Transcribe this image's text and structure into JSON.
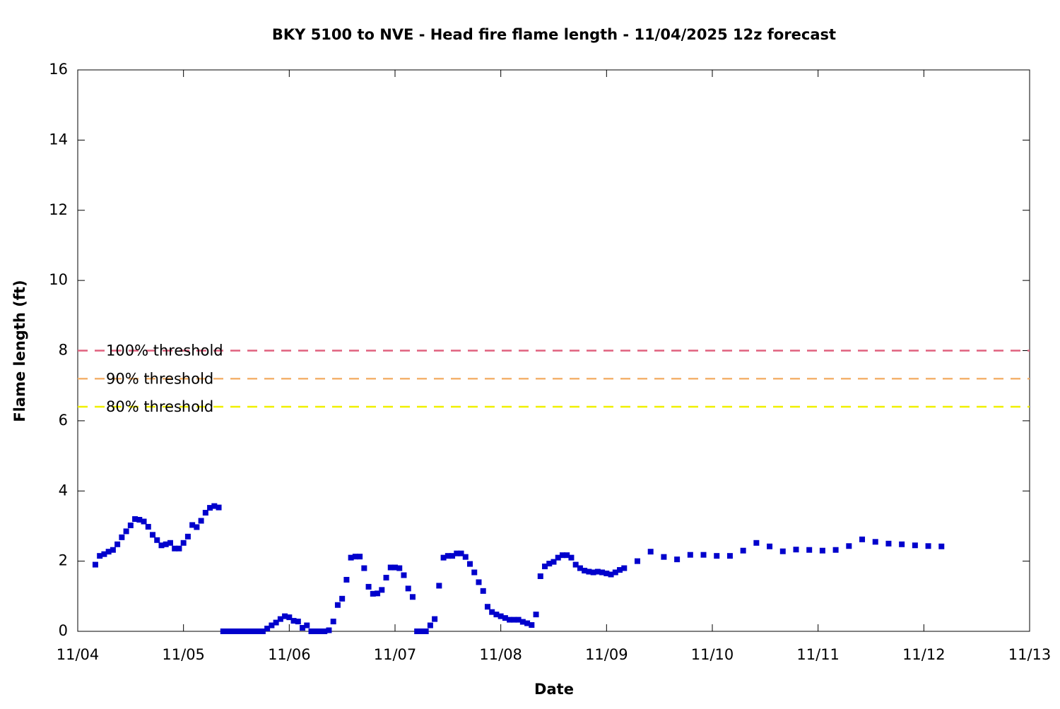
{
  "chart_data": {
    "type": "scatter",
    "title": "BKY 5100 to NVE - Head fire flame length - 11/04/2025 12z forecast",
    "x_label": "Date",
    "y_label": "Flame length (ft)",
    "xlim": [
      0,
      216
    ],
    "ylim": [
      0,
      16
    ],
    "xticks": [
      {
        "value": 0,
        "label": "11/04"
      },
      {
        "value": 24,
        "label": "11/05"
      },
      {
        "value": 48,
        "label": "11/06"
      },
      {
        "value": 72,
        "label": "11/07"
      },
      {
        "value": 96,
        "label": "11/08"
      },
      {
        "value": 120,
        "label": "11/09"
      },
      {
        "value": 144,
        "label": "11/10"
      },
      {
        "value": 168,
        "label": "11/11"
      },
      {
        "value": 192,
        "label": "11/12"
      },
      {
        "value": 216,
        "label": "11/13"
      }
    ],
    "yticks": [
      0,
      2,
      4,
      6,
      8,
      10,
      12,
      14,
      16
    ],
    "thresholds": [
      {
        "name": "100% threshold",
        "color": "#e0607e",
        "value": 8
      },
      {
        "name": "90% threshold",
        "color": "#f4b26e",
        "value": 7.2
      },
      {
        "name": "80% threshold",
        "color": "#f0f000",
        "value": 6.4
      }
    ],
    "series": [
      {
        "color": "#0000cc",
        "x": [
          4,
          5,
          6,
          7,
          8,
          9,
          10,
          11,
          12,
          13,
          14,
          15,
          16,
          17,
          18,
          19,
          20,
          21,
          22,
          23,
          24,
          25,
          26,
          27,
          28,
          29,
          30,
          31,
          32,
          33,
          34,
          35,
          36,
          37,
          38,
          39,
          40,
          41,
          42,
          43,
          44,
          45,
          46,
          47,
          48,
          49,
          50,
          51,
          52,
          53,
          54,
          55,
          56,
          57,
          58,
          59,
          60,
          61,
          62,
          63,
          64,
          65,
          66,
          67,
          68,
          69,
          70,
          71,
          72,
          73,
          74,
          75,
          76,
          77,
          78,
          79,
          80,
          81,
          82,
          83,
          84,
          85,
          86,
          87,
          88,
          89,
          90,
          91,
          92,
          93,
          94,
          95,
          96,
          97,
          98,
          99,
          100,
          101,
          102,
          103,
          104,
          105,
          106,
          107,
          108,
          109,
          110,
          111,
          112,
          113,
          114,
          115,
          116,
          117,
          118,
          119,
          120,
          121,
          122,
          123,
          124,
          127,
          130,
          133,
          136,
          139,
          142,
          145,
          148,
          151,
          154,
          157,
          160,
          163,
          166,
          169,
          172,
          175,
          178,
          181,
          184,
          187,
          190,
          193,
          196
        ],
        "values": [
          1.9,
          2.15,
          2.2,
          2.27,
          2.32,
          2.48,
          2.68,
          2.85,
          3.02,
          3.2,
          3.18,
          3.13,
          2.98,
          2.75,
          2.6,
          2.45,
          2.48,
          2.52,
          2.36,
          2.36,
          2.52,
          2.7,
          3.03,
          2.97,
          3.15,
          3.38,
          3.52,
          3.57,
          3.53,
          0,
          0,
          0,
          0,
          0,
          0,
          0,
          0,
          0,
          0,
          0.08,
          0.17,
          0.25,
          0.35,
          0.43,
          0.4,
          0.3,
          0.28,
          0.1,
          0.17,
          0,
          0,
          0,
          0,
          0.03,
          0.28,
          0.75,
          0.93,
          1.47,
          2.1,
          2.13,
          2.13,
          1.8,
          1.27,
          1.07,
          1.08,
          1.18,
          1.53,
          1.82,
          1.82,
          1.8,
          1.6,
          1.22,
          0.98,
          0,
          0,
          0,
          0.17,
          0.35,
          1.3,
          2.1,
          2.15,
          2.15,
          2.22,
          2.22,
          2.12,
          1.92,
          1.68,
          1.4,
          1.15,
          0.7,
          0.55,
          0.48,
          0.43,
          0.38,
          0.33,
          0.33,
          0.33,
          0.27,
          0.23,
          0.18,
          0.48,
          1.57,
          1.85,
          1.93,
          1.98,
          2.1,
          2.17,
          2.17,
          2.1,
          1.9,
          1.8,
          1.73,
          1.7,
          1.68,
          1.7,
          1.68,
          1.65,
          1.62,
          1.68,
          1.75,
          1.8,
          2.0,
          2.27,
          2.12,
          2.05,
          2.18,
          2.18,
          2.15,
          2.15,
          2.3,
          2.52,
          2.42,
          2.28,
          2.33,
          2.32,
          2.3,
          2.32,
          2.43,
          2.62,
          2.55,
          2.5,
          2.48,
          2.45,
          2.43,
          2.42
        ]
      }
    ]
  }
}
